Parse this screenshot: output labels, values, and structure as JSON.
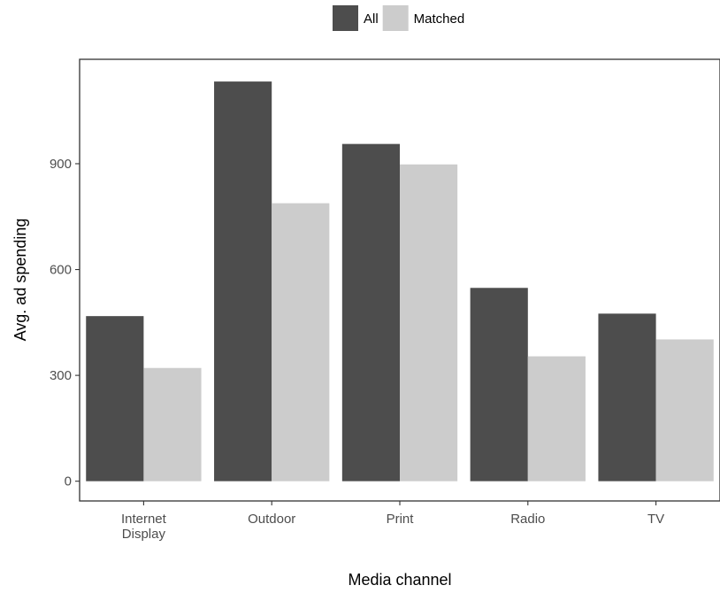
{
  "chart_data": {
    "type": "bar",
    "xlabel": "Media channel",
    "ylabel": "Avg. ad spending",
    "categories": [
      [
        "Internet",
        "Display"
      ],
      [
        "Outdoor"
      ],
      [
        "Print"
      ],
      [
        "Radio"
      ],
      [
        "TV"
      ]
    ],
    "series": [
      {
        "name": "All",
        "color": "#4d4d4d",
        "values": [
          468,
          1133,
          956,
          548,
          475
        ]
      },
      {
        "name": "Matched",
        "color": "#cccccc",
        "values": [
          321,
          788,
          898,
          354,
          402
        ]
      }
    ],
    "yticks": [
      0,
      300,
      600,
      900
    ],
    "ytick_labels": [
      "0",
      "300",
      "600",
      "900"
    ],
    "ylim": [
      -56,
      1196
    ],
    "legend_position": "top",
    "grid": false
  }
}
